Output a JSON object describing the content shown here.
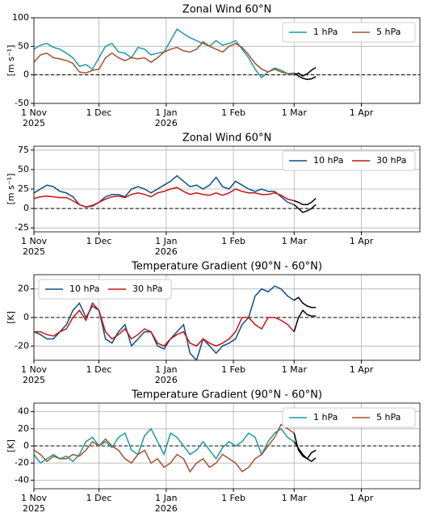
{
  "chart_data": [
    {
      "type": "line",
      "title": "Zonal Wind 60°N",
      "ylabel": "[m s⁻¹]",
      "legend": "upper right",
      "grid": true,
      "zero_line": true,
      "xlim": [
        "2025-11-01",
        "2026-04-28"
      ],
      "xticks": [
        {
          "value": "2025-11-01",
          "label": "1 Nov\n2025"
        },
        {
          "value": "2025-12-01",
          "label": "1 Dec"
        },
        {
          "value": "2026-01-01",
          "label": "1 Jan\n2026"
        },
        {
          "value": "2026-02-01",
          "label": "1 Feb"
        },
        {
          "value": "2026-03-01",
          "label": "1 Mar"
        },
        {
          "value": "2026-04-01",
          "label": "1 Apr"
        }
      ],
      "ylim": [
        -50,
        100
      ],
      "yticks": [
        -50,
        0,
        50,
        100
      ],
      "x": [
        "2025-11-01",
        "2025-11-04",
        "2025-11-07",
        "2025-11-10",
        "2025-11-13",
        "2025-11-16",
        "2025-11-19",
        "2025-11-22",
        "2025-11-25",
        "2025-11-28",
        "2025-12-01",
        "2025-12-04",
        "2025-12-07",
        "2025-12-10",
        "2025-12-13",
        "2025-12-16",
        "2025-12-19",
        "2025-12-22",
        "2025-12-25",
        "2025-12-28",
        "2025-12-31",
        "2026-01-03",
        "2026-01-06",
        "2026-01-09",
        "2026-01-12",
        "2026-01-15",
        "2026-01-18",
        "2026-01-21",
        "2026-01-24",
        "2026-01-27",
        "2026-01-30",
        "2026-02-02",
        "2026-02-05",
        "2026-02-08",
        "2026-02-11",
        "2026-02-14",
        "2026-02-17",
        "2026-02-20",
        "2026-02-23",
        "2026-02-26",
        "2026-03-01"
      ],
      "series": [
        {
          "name": "1 hPa",
          "color": "#1a9ba3",
          "values": [
            45,
            52,
            55,
            48,
            45,
            38,
            30,
            15,
            18,
            10,
            30,
            50,
            55,
            40,
            38,
            30,
            48,
            45,
            35,
            38,
            40,
            60,
            80,
            72,
            65,
            60,
            55,
            50,
            60,
            52,
            55,
            60,
            45,
            30,
            10,
            -5,
            5,
            12,
            8,
            2,
            0
          ]
        },
        {
          "name": "5 hPa",
          "color": "#a0522d",
          "values": [
            22,
            35,
            38,
            30,
            28,
            25,
            20,
            5,
            3,
            8,
            10,
            30,
            38,
            30,
            25,
            30,
            28,
            30,
            22,
            30,
            40,
            45,
            48,
            42,
            40,
            45,
            58,
            50,
            45,
            40,
            50,
            55,
            48,
            35,
            20,
            10,
            5,
            10,
            5,
            2,
            3
          ]
        },
        {
          "color": "#000000",
          "x": [
            "2026-03-01",
            "2026-03-03",
            "2026-03-05",
            "2026-03-07",
            "2026-03-09",
            "2026-03-11"
          ],
          "values": [
            0,
            3,
            -2,
            2,
            8,
            13
          ]
        },
        {
          "color": "#000000",
          "x": [
            "2026-03-01",
            "2026-03-03",
            "2026-03-05",
            "2026-03-07",
            "2026-03-09",
            "2026-03-11"
          ],
          "values": [
            3,
            -2,
            -6,
            -8,
            -7,
            -3
          ]
        }
      ]
    },
    {
      "type": "line",
      "title": "Zonal Wind 60°N",
      "ylabel": "[m s⁻¹]",
      "legend": "upper right",
      "grid": true,
      "zero_line": true,
      "xlim": [
        "2025-11-01",
        "2026-04-28"
      ],
      "xticks": [
        {
          "value": "2025-11-01",
          "label": "1 Nov\n2025"
        },
        {
          "value": "2025-12-01",
          "label": "1 Dec"
        },
        {
          "value": "2026-01-01",
          "label": "1 Jan\n2026"
        },
        {
          "value": "2026-02-01",
          "label": "1 Feb"
        },
        {
          "value": "2026-03-01",
          "label": "1 Mar"
        },
        {
          "value": "2026-04-01",
          "label": "1 Apr"
        }
      ],
      "ylim": [
        -30,
        80
      ],
      "yticks": [
        -25,
        0,
        25,
        50,
        75
      ],
      "x": [
        "2025-11-01",
        "2025-11-04",
        "2025-11-07",
        "2025-11-10",
        "2025-11-13",
        "2025-11-16",
        "2025-11-19",
        "2025-11-22",
        "2025-11-25",
        "2025-11-28",
        "2025-12-01",
        "2025-12-04",
        "2025-12-07",
        "2025-12-10",
        "2025-12-13",
        "2025-12-16",
        "2025-12-19",
        "2025-12-22",
        "2025-12-25",
        "2025-12-28",
        "2025-12-31",
        "2026-01-03",
        "2026-01-06",
        "2026-01-09",
        "2026-01-12",
        "2026-01-15",
        "2026-01-18",
        "2026-01-21",
        "2026-01-24",
        "2026-01-27",
        "2026-01-30",
        "2026-02-02",
        "2026-02-05",
        "2026-02-08",
        "2026-02-11",
        "2026-02-14",
        "2026-02-17",
        "2026-02-20",
        "2026-02-23",
        "2026-02-26",
        "2026-03-01"
      ],
      "series": [
        {
          "name": "10 hPa",
          "color": "#0b4f8a",
          "values": [
            20,
            25,
            30,
            28,
            22,
            20,
            15,
            5,
            2,
            3,
            8,
            15,
            18,
            18,
            15,
            25,
            28,
            25,
            20,
            25,
            30,
            35,
            42,
            35,
            28,
            30,
            25,
            30,
            40,
            28,
            25,
            35,
            30,
            25,
            22,
            25,
            22,
            22,
            15,
            8,
            5
          ]
        },
        {
          "name": "30 hPa",
          "color": "#cc1111",
          "values": [
            13,
            15,
            16,
            15,
            14,
            14,
            10,
            5,
            2,
            4,
            8,
            12,
            15,
            16,
            14,
            18,
            20,
            18,
            15,
            20,
            22,
            25,
            27,
            22,
            18,
            20,
            18,
            17,
            20,
            17,
            20,
            25,
            22,
            20,
            20,
            18,
            18,
            20,
            17,
            12,
            10
          ]
        },
        {
          "color": "#000000",
          "x": [
            "2026-03-01",
            "2026-03-03",
            "2026-03-05",
            "2026-03-07",
            "2026-03-09",
            "2026-03-11"
          ],
          "values": [
            5,
            0,
            -5,
            -3,
            0,
            5
          ]
        },
        {
          "color": "#000000",
          "x": [
            "2026-03-01",
            "2026-03-03",
            "2026-03-05",
            "2026-03-07",
            "2026-03-09",
            "2026-03-11"
          ],
          "values": [
            10,
            8,
            5,
            5,
            8,
            13
          ]
        }
      ]
    },
    {
      "type": "line",
      "title": "Temperature Gradient (90°N - 60°N)",
      "ylabel": "[K]",
      "legend": "upper left",
      "grid": true,
      "zero_line": true,
      "xlim": [
        "2025-11-01",
        "2026-04-28"
      ],
      "xticks": [
        {
          "value": "2025-11-01",
          "label": "1 Nov\n2025"
        },
        {
          "value": "2025-12-01",
          "label": "1 Dec"
        },
        {
          "value": "2026-01-01",
          "label": "1 Jan\n2026"
        },
        {
          "value": "2026-02-01",
          "label": "1 Feb"
        },
        {
          "value": "2026-03-01",
          "label": "1 Mar"
        },
        {
          "value": "2026-04-01",
          "label": "1 Apr"
        }
      ],
      "ylim": [
        -30,
        30
      ],
      "yticks": [
        -20,
        0,
        20
      ],
      "x": [
        "2025-11-01",
        "2025-11-04",
        "2025-11-07",
        "2025-11-10",
        "2025-11-13",
        "2025-11-16",
        "2025-11-19",
        "2025-11-22",
        "2025-11-25",
        "2025-11-28",
        "2025-12-01",
        "2025-12-04",
        "2025-12-07",
        "2025-12-10",
        "2025-12-13",
        "2025-12-16",
        "2025-12-19",
        "2025-12-22",
        "2025-12-25",
        "2025-12-28",
        "2025-12-31",
        "2026-01-03",
        "2026-01-06",
        "2026-01-09",
        "2026-01-12",
        "2026-01-15",
        "2026-01-18",
        "2026-01-21",
        "2026-01-24",
        "2026-01-27",
        "2026-01-30",
        "2026-02-02",
        "2026-02-05",
        "2026-02-08",
        "2026-02-11",
        "2026-02-14",
        "2026-02-17",
        "2026-02-20",
        "2026-02-23",
        "2026-02-26",
        "2026-03-01"
      ],
      "series": [
        {
          "name": "10 hPa",
          "color": "#0b4f8a",
          "values": [
            -10,
            -12,
            -15,
            -15,
            -10,
            -5,
            5,
            10,
            0,
            8,
            5,
            -15,
            -18,
            -10,
            -5,
            -20,
            -15,
            -10,
            -10,
            -20,
            -22,
            -15,
            -10,
            -5,
            -25,
            -30,
            -15,
            -20,
            -25,
            -20,
            -18,
            -15,
            -5,
            0,
            15,
            20,
            18,
            22,
            20,
            15,
            12
          ]
        },
        {
          "name": "30 hPa",
          "color": "#cc1111",
          "values": [
            -10,
            -10,
            -12,
            -13,
            -10,
            -8,
            0,
            5,
            -2,
            10,
            5,
            -10,
            -15,
            -12,
            -8,
            -15,
            -12,
            -8,
            -10,
            -18,
            -20,
            -15,
            -12,
            -10,
            -18,
            -20,
            -15,
            -18,
            -20,
            -18,
            -15,
            -10,
            0,
            0,
            -5,
            -8,
            0,
            0,
            -2,
            -5,
            -10
          ]
        },
        {
          "color": "#000000",
          "x": [
            "2026-03-01",
            "2026-03-03",
            "2026-03-05",
            "2026-03-07",
            "2026-03-09",
            "2026-03-11"
          ],
          "values": [
            12,
            14,
            10,
            8,
            7,
            7
          ]
        },
        {
          "color": "#000000",
          "x": [
            "2026-03-01",
            "2026-03-03",
            "2026-03-05",
            "2026-03-07",
            "2026-03-09",
            "2026-03-11"
          ],
          "values": [
            -10,
            0,
            5,
            2,
            1,
            1
          ]
        }
      ]
    },
    {
      "type": "line",
      "title": "Temperature Gradient (90°N - 60°N)",
      "ylabel": "[K]",
      "legend": "upper right",
      "grid": true,
      "zero_line": true,
      "xlim": [
        "2025-11-01",
        "2026-04-28"
      ],
      "xticks": [
        {
          "value": "2025-11-01",
          "label": "1 Nov\n2025"
        },
        {
          "value": "2025-12-01",
          "label": "1 Dec"
        },
        {
          "value": "2026-01-01",
          "label": "1 Jan\n2026"
        },
        {
          "value": "2026-02-01",
          "label": "1 Feb"
        },
        {
          "value": "2026-03-01",
          "label": "1 Mar"
        },
        {
          "value": "2026-04-01",
          "label": "1 Apr"
        }
      ],
      "ylim": [
        -50,
        50
      ],
      "yticks": [
        -40,
        -20,
        0,
        20,
        40
      ],
      "x": [
        "2025-11-01",
        "2025-11-04",
        "2025-11-07",
        "2025-11-10",
        "2025-11-13",
        "2025-11-16",
        "2025-11-19",
        "2025-11-22",
        "2025-11-25",
        "2025-11-28",
        "2025-12-01",
        "2025-12-04",
        "2025-12-07",
        "2025-12-10",
        "2025-12-13",
        "2025-12-16",
        "2025-12-19",
        "2025-12-22",
        "2025-12-25",
        "2025-12-28",
        "2025-12-31",
        "2026-01-03",
        "2026-01-06",
        "2026-01-09",
        "2026-01-12",
        "2026-01-15",
        "2026-01-18",
        "2026-01-21",
        "2026-01-24",
        "2026-01-27",
        "2026-01-30",
        "2026-02-02",
        "2026-02-05",
        "2026-02-08",
        "2026-02-11",
        "2026-02-14",
        "2026-02-17",
        "2026-02-20",
        "2026-02-23",
        "2026-02-26",
        "2026-03-01"
      ],
      "series": [
        {
          "name": "1 hPa",
          "color": "#1a9ba3",
          "values": [
            -10,
            -20,
            -15,
            -10,
            -15,
            -12,
            -18,
            -10,
            5,
            10,
            0,
            5,
            -2,
            10,
            15,
            -5,
            -10,
            12,
            20,
            5,
            -10,
            15,
            10,
            0,
            -10,
            -5,
            5,
            -5,
            -15,
            -2,
            5,
            0,
            5,
            15,
            10,
            -10,
            5,
            15,
            20,
            10,
            5
          ]
        },
        {
          "name": "5 hPa",
          "color": "#a0522d",
          "values": [
            -5,
            -10,
            -18,
            -12,
            -15,
            -15,
            -10,
            -12,
            -5,
            5,
            0,
            8,
            0,
            -5,
            -15,
            -20,
            -10,
            -5,
            -20,
            -15,
            -25,
            -20,
            -10,
            -15,
            -30,
            -20,
            -15,
            -25,
            -20,
            -10,
            -15,
            -20,
            -30,
            -25,
            -15,
            -10,
            0,
            10,
            25,
            20,
            15
          ]
        },
        {
          "color": "#000000",
          "x": [
            "2026-03-01",
            "2026-03-03",
            "2026-03-05",
            "2026-03-07",
            "2026-03-09",
            "2026-03-11"
          ],
          "values": [
            5,
            -3,
            -10,
            -15,
            -8,
            -5
          ]
        },
        {
          "color": "#000000",
          "x": [
            "2026-03-01",
            "2026-03-03",
            "2026-03-05",
            "2026-03-07",
            "2026-03-09",
            "2026-03-11"
          ],
          "values": [
            15,
            -5,
            -12,
            -15,
            -18,
            -14
          ]
        }
      ]
    }
  ]
}
